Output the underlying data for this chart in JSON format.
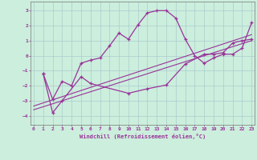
{
  "xlabel": "Windchill (Refroidissement éolien,°C)",
  "bg_color": "#cceedd",
  "grid_color": "#aacccc",
  "line_color": "#993399",
  "x_ticks": [
    0,
    1,
    2,
    3,
    4,
    5,
    6,
    7,
    8,
    9,
    10,
    11,
    12,
    13,
    14,
    15,
    16,
    17,
    18,
    19,
    20,
    21,
    22,
    23
  ],
  "y_ticks": [
    -4,
    -3,
    -2,
    -1,
    0,
    1,
    2,
    3
  ],
  "xlim": [
    -0.3,
    23.3
  ],
  "ylim": [
    -4.6,
    3.6
  ],
  "curve1_x": [
    1,
    2,
    3,
    4,
    5,
    6,
    7,
    8,
    9,
    10,
    11,
    12,
    13,
    14,
    15,
    16,
    17,
    18,
    19,
    20,
    21,
    22,
    23
  ],
  "curve1_y": [
    -1.2,
    -2.9,
    -1.7,
    -2.0,
    -0.5,
    -0.3,
    -0.15,
    0.65,
    1.5,
    1.1,
    2.05,
    2.85,
    3.0,
    3.0,
    2.5,
    1.1,
    0.0,
    -0.5,
    -0.15,
    0.1,
    0.1,
    0.5,
    2.2
  ],
  "curve2_x": [
    1,
    2,
    3,
    5,
    6,
    10,
    12,
    14,
    16,
    18,
    19,
    20,
    21,
    22,
    23
  ],
  "curve2_y": [
    -1.2,
    -3.8,
    -3.0,
    -1.4,
    -1.85,
    -2.5,
    -2.2,
    -1.95,
    -0.55,
    0.1,
    0.1,
    0.2,
    0.85,
    1.0,
    1.1
  ],
  "line1_x": [
    0,
    23
  ],
  "line1_y": [
    -3.35,
    1.4
  ],
  "line2_x": [
    0,
    23
  ],
  "line2_y": [
    -3.6,
    1.0
  ]
}
